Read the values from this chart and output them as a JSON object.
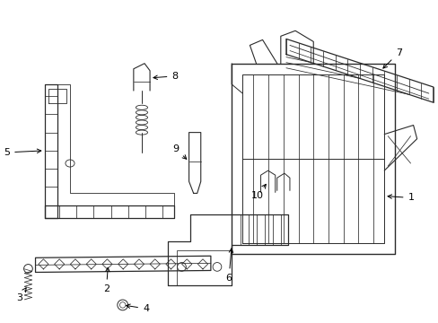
{
  "bg_color": "#ffffff",
  "line_color": "#2a2a2a",
  "label_color": "#000000",
  "figsize": [
    4.89,
    3.6
  ],
  "dpi": 100,
  "label_fs": 8.0,
  "lw_main": 0.9,
  "lw_detail": 0.55
}
